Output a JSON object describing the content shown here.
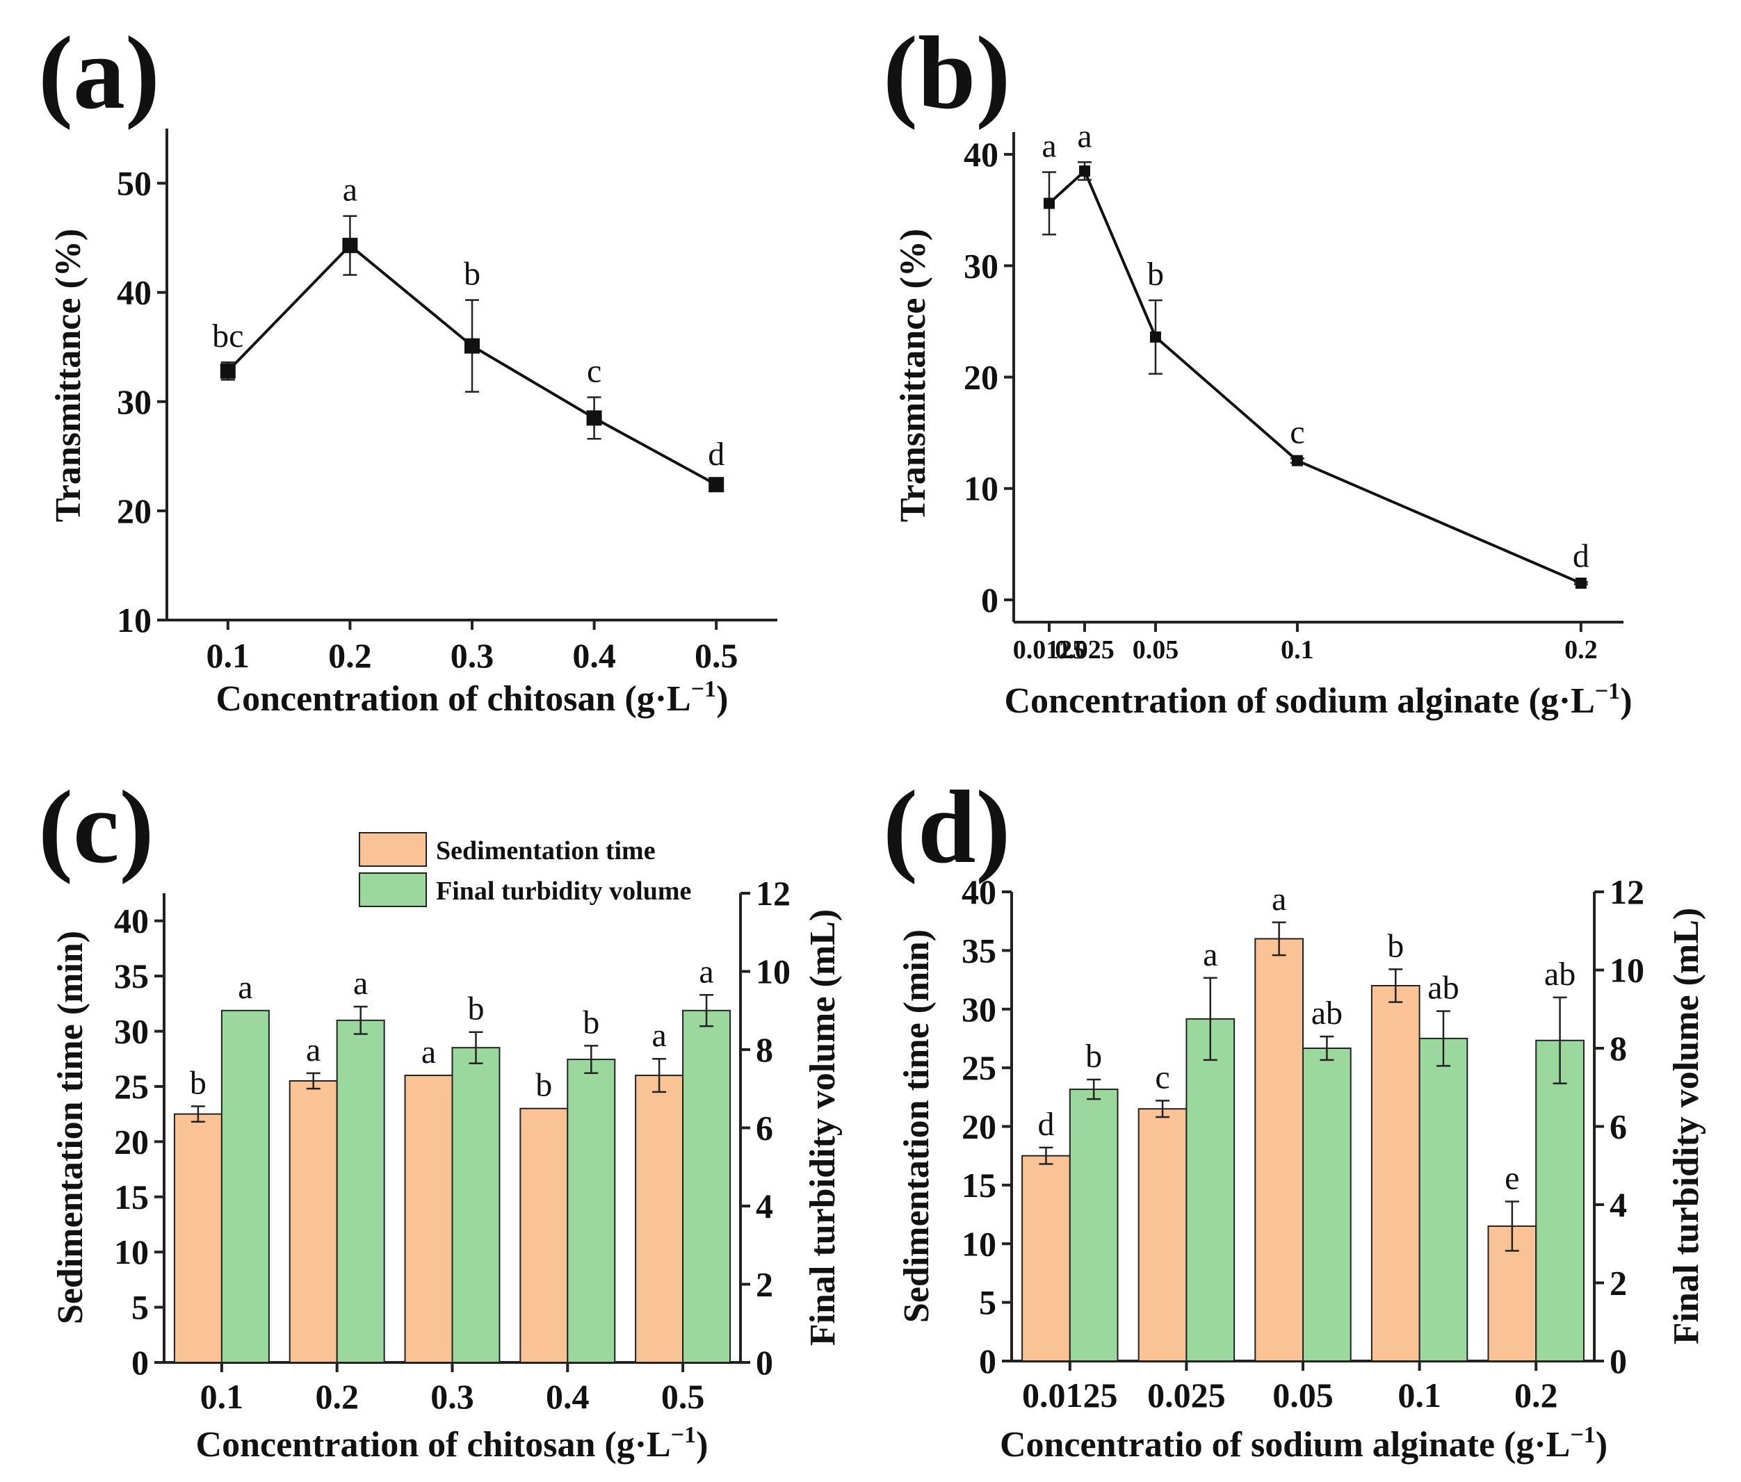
{
  "chart_data": [
    {
      "panel": "(a)",
      "type": "line",
      "xlabel": "Concentration of chitosan (g·L",
      "xlabel_sup": "−1",
      "xlabel_close": ")",
      "ylabel": "Transmittance (%)",
      "x": [
        0.1,
        0.2,
        0.3,
        0.4,
        0.5
      ],
      "x_tick_labels": [
        "0.1",
        "0.2",
        "0.3",
        "0.4",
        "0.5"
      ],
      "xlim": [
        0.05,
        0.55
      ],
      "ylim": [
        10,
        55
      ],
      "y_ticks": [
        10,
        20,
        30,
        40,
        50
      ],
      "values": [
        32.8,
        44.3,
        35.1,
        28.5,
        22.4
      ],
      "errors": [
        0.8,
        2.7,
        4.2,
        1.9,
        0.4
      ],
      "labels": [
        "bc",
        "a",
        "b",
        "c",
        "d"
      ]
    },
    {
      "panel": "(b)",
      "type": "line",
      "xlabel": "Concentration of sodium alginate (g·L",
      "xlabel_sup": "−1",
      "xlabel_close": ")",
      "ylabel": "Transmittance (%)",
      "x": [
        0.0125,
        0.025,
        0.05,
        0.1,
        0.2
      ],
      "x_tick_labels": [
        "0.0125",
        "0.025",
        "0.05",
        "0.1",
        "0.2"
      ],
      "xlim": [
        0.0,
        0.215
      ],
      "ylim": [
        -2,
        42
      ],
      "y_ticks": [
        0,
        10,
        20,
        30,
        40
      ],
      "values": [
        35.6,
        38.5,
        23.6,
        12.5,
        1.5
      ],
      "errors": [
        2.8,
        0.8,
        3.3,
        0.2,
        0.1
      ],
      "labels": [
        "a",
        "a",
        "b",
        "c",
        "d"
      ]
    },
    {
      "panel": "(c)",
      "type": "bar",
      "xlabel": "Concentration of chitosan (g·L",
      "xlabel_sup": "−1",
      "xlabel_close": ")",
      "ylabel": "Sedimentation time (min)",
      "ylabel_right": "Final turbidity volume (mL)",
      "categories": [
        "0.1",
        "0.2",
        "0.3",
        "0.4",
        "0.5"
      ],
      "ylim": [
        0,
        42.5
      ],
      "y_ticks": [
        0,
        5,
        10,
        15,
        20,
        25,
        30,
        35,
        40
      ],
      "ylim_right": [
        0,
        12
      ],
      "y_ticks_right": [
        0,
        2,
        4,
        6,
        8,
        10,
        12
      ],
      "series": [
        {
          "name": "Sedimentation time",
          "axis": "left",
          "values": [
            22.5,
            25.5,
            26.0,
            23.0,
            26.0
          ],
          "errors": [
            0.7,
            0.7,
            0,
            0,
            1.5
          ],
          "labels": [
            "b",
            "a",
            "a",
            "b",
            "a"
          ]
        },
        {
          "name": "Final turbidity volume",
          "axis": "right",
          "values": [
            9.0,
            8.75,
            8.05,
            7.75,
            9.0
          ],
          "errors": [
            0,
            0.35,
            0.4,
            0.35,
            0.4
          ],
          "labels": [
            "a",
            "a",
            "b",
            "b",
            "a"
          ]
        }
      ]
    },
    {
      "panel": "(d)",
      "type": "bar",
      "xlabel": "Concentratio of sodium alginate (g·L",
      "xlabel_sup": "−1",
      "xlabel_close": ")",
      "ylabel": "Sedimentation time (min)",
      "ylabel_right": "Final turbidity volume (mL)",
      "categories": [
        "0.0125",
        "0.025",
        "0.05",
        "0.1",
        "0.2"
      ],
      "ylim": [
        0,
        40
      ],
      "y_ticks": [
        0,
        5,
        10,
        15,
        20,
        25,
        30,
        35,
        40
      ],
      "ylim_right": [
        0,
        12
      ],
      "y_ticks_right": [
        0,
        2,
        4,
        6,
        8,
        10,
        12
      ],
      "series": [
        {
          "name": "Sedimentation time",
          "axis": "left",
          "values": [
            17.5,
            21.5,
            36.0,
            32.0,
            11.5
          ],
          "errors": [
            0.7,
            0.7,
            1.4,
            1.4,
            2.1
          ],
          "labels": [
            "d",
            "c",
            "a",
            "b",
            "e"
          ]
        },
        {
          "name": "Final turbidity volume",
          "axis": "right",
          "values": [
            6.95,
            8.75,
            8.0,
            8.25,
            8.2
          ],
          "errors": [
            0.25,
            1.05,
            0.3,
            0.7,
            1.1
          ],
          "labels": [
            "b",
            "a",
            "ab",
            "ab",
            "ab"
          ]
        }
      ]
    }
  ],
  "legend": {
    "items": [
      "Sedimentation time",
      "Final turbidity volume"
    ]
  },
  "colors": {
    "sedimentation": "#f9c396",
    "turbidity": "#9bd89e",
    "line": "#111111"
  }
}
